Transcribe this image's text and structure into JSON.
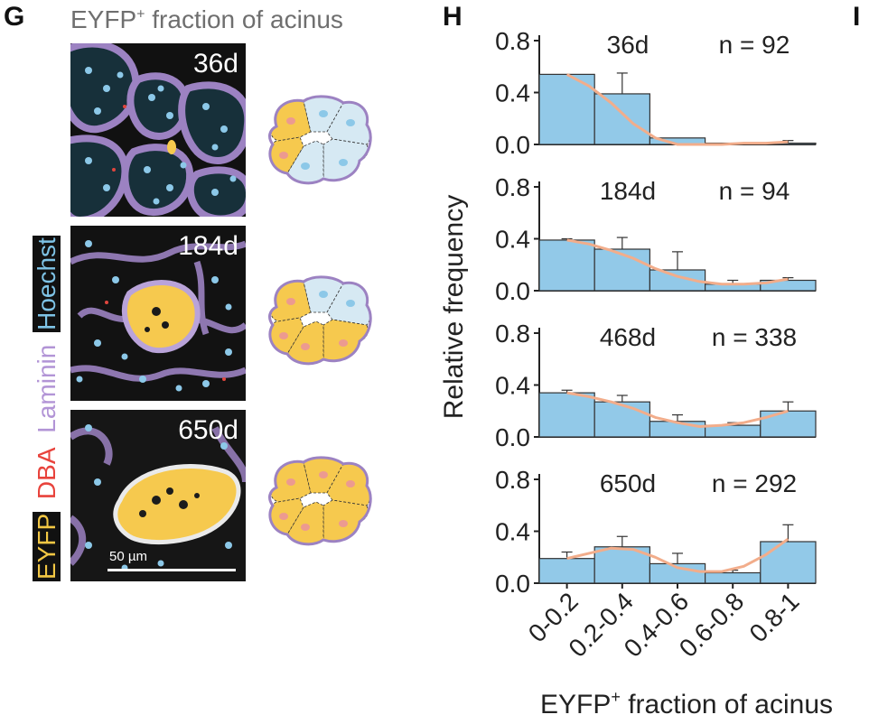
{
  "panels": {
    "g_letter": "G",
    "h_letter": "H",
    "i_letter": "I"
  },
  "panel_g": {
    "title_main": "EYFP",
    "title_sup": "+",
    "title_rest": " fraction of acinus",
    "side_labels": [
      {
        "text": "EYFP",
        "color": "#f2c744",
        "bg": "#111111"
      },
      {
        "text": " ",
        "color": "#ffffff",
        "bg": "#ffffff"
      },
      {
        "text": "DBA",
        "color": "#e8433c",
        "bg": "#ffffff"
      },
      {
        "text": " ",
        "color": "#ffffff",
        "bg": "#ffffff"
      },
      {
        "text": "Laminin",
        "color": "#b294d6",
        "bg": "#ffffff"
      },
      {
        "text": " ",
        "color": "#ffffff",
        "bg": "#ffffff"
      },
      {
        "text": "Hoechst",
        "color": "#7ec3e6",
        "bg": "#111111"
      }
    ],
    "images": [
      {
        "day": "36d"
      },
      {
        "day": "184d"
      },
      {
        "day": "650d"
      }
    ],
    "scale_bar": "50 µm",
    "colors": {
      "eyfp": "#f6c94e",
      "laminin": "#9c82c2",
      "hoechst": "#8cc8e8",
      "dba": "#e0463e",
      "nucleus_pink": "#ec9a90",
      "unlabeled_cell": "#d6e9f3"
    }
  },
  "chart_data": {
    "type": "bar",
    "ylabel": "Relative frequency",
    "xlabel_main": "EYFP",
    "xlabel_sup": "+",
    "xlabel_rest": " fraction of acinus",
    "categories": [
      "0-0.2",
      "0.2-0.4",
      "0.4-0.6",
      "0.6-0.8",
      "0.8-1"
    ],
    "ylim": [
      0,
      0.8
    ],
    "yticks": [
      "0.0",
      "0.4",
      "0.8"
    ],
    "bar_color": "#92c9e8",
    "fit_color": "#f2ad8b",
    "subplots": [
      {
        "day": "36d",
        "n": "n = 92",
        "values": [
          0.54,
          0.39,
          0.05,
          0.01,
          0.01
        ],
        "errors": [
          0.0,
          0.16,
          0.0,
          0.0,
          0.02
        ],
        "fit": [
          0.54,
          0.45,
          0.32,
          0.16,
          0.05,
          0.0,
          -0.01,
          0.0,
          0.01,
          0.01,
          0.02
        ]
      },
      {
        "day": "184d",
        "n": "n = 94",
        "values": [
          0.39,
          0.32,
          0.16,
          0.05,
          0.08
        ],
        "errors": [
          0.01,
          0.09,
          0.14,
          0.03,
          0.02
        ],
        "fit": [
          0.39,
          0.36,
          0.31,
          0.25,
          0.17,
          0.11,
          0.07,
          0.05,
          0.05,
          0.06,
          0.09
        ]
      },
      {
        "day": "468d",
        "n": "n = 338",
        "values": [
          0.34,
          0.27,
          0.12,
          0.09,
          0.2
        ],
        "errors": [
          0.02,
          0.05,
          0.05,
          0.02,
          0.07
        ],
        "fit": [
          0.34,
          0.31,
          0.27,
          0.22,
          0.15,
          0.11,
          0.08,
          0.09,
          0.11,
          0.15,
          0.2
        ]
      },
      {
        "day": "650d",
        "n": "n = 292",
        "values": [
          0.19,
          0.28,
          0.15,
          0.08,
          0.32
        ],
        "errors": [
          0.05,
          0.08,
          0.08,
          0.02,
          0.13
        ],
        "fit": [
          0.19,
          0.23,
          0.27,
          0.26,
          0.2,
          0.12,
          0.09,
          0.09,
          0.13,
          0.22,
          0.34
        ]
      }
    ]
  }
}
